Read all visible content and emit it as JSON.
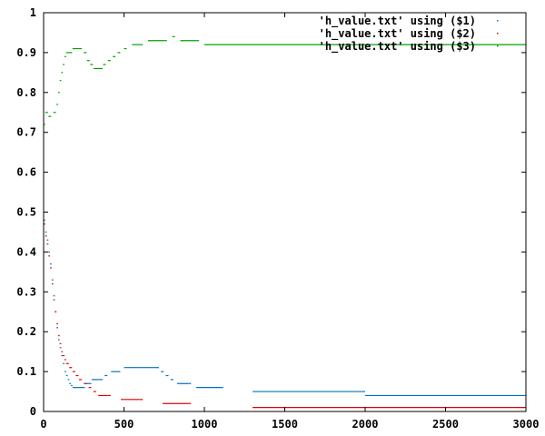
{
  "chart_data": {
    "type": "scatter",
    "xlim": [
      0,
      3000
    ],
    "ylim": [
      0,
      1
    ],
    "x_ticks": [
      "0",
      "500",
      "1000",
      "1500",
      "2000",
      "2500",
      "3000"
    ],
    "y_ticks": [
      "0",
      "0.1",
      "0.2",
      "0.3",
      "0.4",
      "0.5",
      "0.6",
      "0.7",
      "0.8",
      "0.9",
      "1"
    ],
    "grid": false,
    "legend_position": "top-right",
    "colors": {
      "series1": "#0070c0",
      "series2": "#e00000",
      "series3": "#00a000",
      "axis": "#000000"
    },
    "series": [
      {
        "name": "'h_value.txt' using ($1)",
        "points": [
          [
            0,
            0.48
          ],
          [
            10,
            0.45
          ],
          [
            20,
            0.43
          ],
          [
            30,
            0.4
          ],
          [
            40,
            0.37
          ],
          [
            50,
            0.33
          ],
          [
            60,
            0.29
          ],
          [
            70,
            0.25
          ],
          [
            80,
            0.21
          ],
          [
            90,
            0.18
          ],
          [
            100,
            0.16
          ],
          [
            110,
            0.14
          ],
          [
            120,
            0.12
          ],
          [
            130,
            0.1
          ],
          [
            140,
            0.09
          ],
          [
            150,
            0.08
          ],
          [
            160,
            0.07
          ],
          [
            170,
            0.065
          ],
          [
            180,
            0.06
          ],
          [
            200,
            0.06
          ],
          [
            220,
            0.06
          ],
          [
            240,
            0.06
          ],
          [
            260,
            0.07
          ],
          [
            280,
            0.07
          ],
          [
            300,
            0.08
          ],
          [
            350,
            0.08
          ],
          [
            380,
            0.09
          ],
          [
            420,
            0.1
          ],
          [
            460,
            0.1
          ],
          [
            500,
            0.11
          ],
          [
            600,
            0.11
          ],
          [
            700,
            0.11
          ],
          [
            730,
            0.1
          ],
          [
            760,
            0.09
          ],
          [
            790,
            0.08
          ],
          [
            830,
            0.07
          ],
          [
            900,
            0.07
          ],
          [
            950,
            0.06
          ],
          [
            1100,
            0.06
          ],
          [
            1300,
            0.05
          ],
          [
            1700,
            0.05
          ],
          [
            1990,
            0.05
          ],
          [
            2000,
            0.04
          ],
          [
            2500,
            0.04
          ],
          [
            3000,
            0.04
          ]
        ]
      },
      {
        "name": "'h_value.txt' using ($2)",
        "points": [
          [
            0,
            0.47
          ],
          [
            10,
            0.44
          ],
          [
            20,
            0.42
          ],
          [
            30,
            0.39
          ],
          [
            40,
            0.36
          ],
          [
            50,
            0.32
          ],
          [
            60,
            0.28
          ],
          [
            70,
            0.25
          ],
          [
            80,
            0.22
          ],
          [
            90,
            0.19
          ],
          [
            100,
            0.17
          ],
          [
            110,
            0.15
          ],
          [
            120,
            0.14
          ],
          [
            130,
            0.13
          ],
          [
            140,
            0.12
          ],
          [
            160,
            0.11
          ],
          [
            180,
            0.1
          ],
          [
            200,
            0.09
          ],
          [
            220,
            0.08
          ],
          [
            250,
            0.07
          ],
          [
            280,
            0.06
          ],
          [
            310,
            0.05
          ],
          [
            340,
            0.04
          ],
          [
            400,
            0.04
          ],
          [
            480,
            0.03
          ],
          [
            600,
            0.03
          ],
          [
            740,
            0.02
          ],
          [
            900,
            0.02
          ],
          [
            1300,
            0.01
          ],
          [
            2000,
            0.01
          ],
          [
            3000,
            0.01
          ]
        ]
      },
      {
        "name": "'h_value.txt' using ($3)",
        "points": [
          [
            0,
            0.72
          ],
          [
            10,
            0.75
          ],
          [
            30,
            0.74
          ],
          [
            60,
            0.75
          ],
          [
            80,
            0.77
          ],
          [
            90,
            0.8
          ],
          [
            100,
            0.83
          ],
          [
            110,
            0.85
          ],
          [
            120,
            0.87
          ],
          [
            130,
            0.89
          ],
          [
            140,
            0.9
          ],
          [
            160,
            0.9
          ],
          [
            180,
            0.91
          ],
          [
            220,
            0.91
          ],
          [
            250,
            0.9
          ],
          [
            270,
            0.88
          ],
          [
            290,
            0.87
          ],
          [
            310,
            0.86
          ],
          [
            350,
            0.86
          ],
          [
            370,
            0.87
          ],
          [
            400,
            0.88
          ],
          [
            430,
            0.89
          ],
          [
            460,
            0.9
          ],
          [
            500,
            0.91
          ],
          [
            550,
            0.92
          ],
          [
            600,
            0.92
          ],
          [
            650,
            0.93
          ],
          [
            750,
            0.93
          ],
          [
            800,
            0.94
          ],
          [
            850,
            0.93
          ],
          [
            950,
            0.93
          ],
          [
            1000,
            0.92
          ],
          [
            1500,
            0.92
          ],
          [
            2000,
            0.92
          ],
          [
            2500,
            0.92
          ],
          [
            3000,
            0.92
          ]
        ]
      }
    ]
  }
}
